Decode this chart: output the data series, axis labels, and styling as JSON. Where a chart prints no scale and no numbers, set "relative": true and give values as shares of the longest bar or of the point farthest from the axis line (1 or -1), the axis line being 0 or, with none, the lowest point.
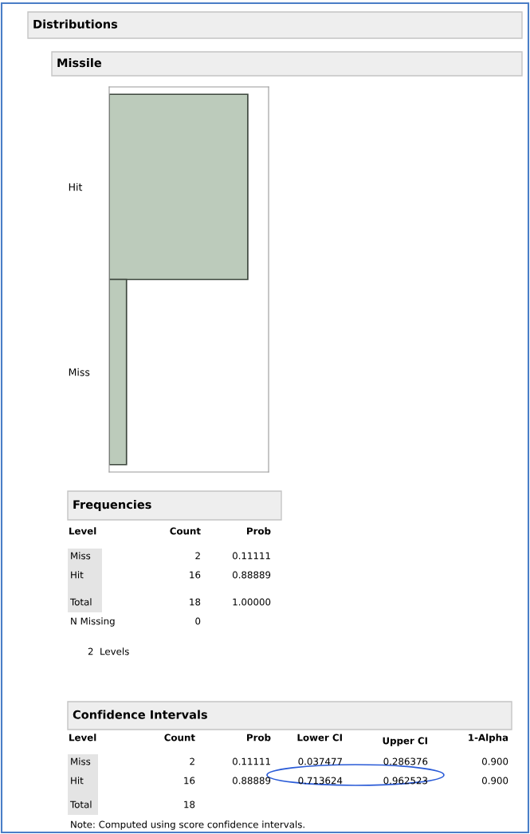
{
  "chart_data": [
    {
      "type": "bar",
      "title": "Distributions",
      "subtitle": "Missile",
      "orientation": "horizontal",
      "relative": true,
      "categories": [
        "Hit",
        "Miss"
      ],
      "values": [
        1,
        0.125
      ],
      "color": "#bccbbb"
    },
    {
      "type": "other",
      "title": "Frequencies",
      "ylabel": "Level",
      "categories": [
        "Count",
        "Prob"
      ],
      "y_categories": [
        "Miss",
        "Hit",
        "Total"
      ],
      "cell_labels": [
        [
          "2",
          "0.11111"
        ],
        [
          "16",
          "0.88889"
        ],
        [
          "18",
          "1.00000"
        ]
      ],
      "annotations": [
        "N Missing",
        "0",
        "2  Levels"
      ]
    },
    {
      "type": "other",
      "title": "Confidence Intervals",
      "ylabel": "Level",
      "categories": [
        "Count",
        "Prob",
        "Lower CI",
        "Upper CI",
        "1-Alpha"
      ],
      "y_categories": [
        "Miss",
        "Hit",
        "Total"
      ],
      "cell_labels": [
        [
          "2",
          "0.11111",
          "0.037477",
          "0.286376",
          "0.900"
        ],
        [
          "16",
          "0.88889",
          "0.713624",
          "0.962523",
          "0.900"
        ],
        [
          "18",
          null,
          null,
          null,
          null
        ]
      ],
      "annotations": [
        "Note: Computed using score confidence intervals."
      ]
    }
  ]
}
